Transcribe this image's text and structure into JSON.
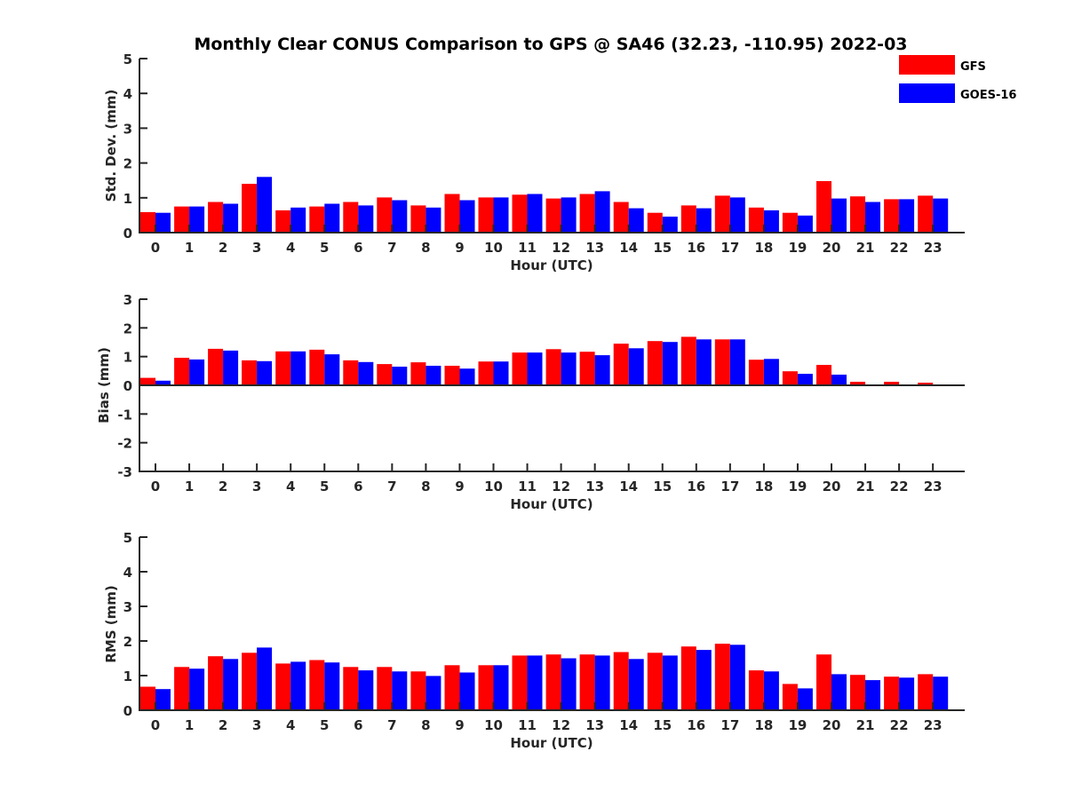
{
  "chart_data": {
    "type": "bar",
    "title": "Monthly Clear CONUS Comparison to GPS @ SA46 (32.23, -110.95) 2022-03",
    "legend": {
      "placement": "top-right",
      "entries": [
        {
          "name": "GFS",
          "color": "#ff0000"
        },
        {
          "name": "GOES-16",
          "color": "#0000ff"
        }
      ]
    },
    "categories": [
      "0",
      "1",
      "2",
      "3",
      "4",
      "5",
      "6",
      "7",
      "8",
      "9",
      "10",
      "11",
      "12",
      "13",
      "14",
      "15",
      "16",
      "17",
      "18",
      "19",
      "20",
      "21",
      "22",
      "23"
    ],
    "panels": [
      {
        "id": "std",
        "xlabel": "Hour (UTC)",
        "ylabel": "Std. Dev. (mm)",
        "ylim": [
          0,
          5
        ],
        "yticks": [
          "0",
          "1",
          "2",
          "3",
          "4",
          "5"
        ],
        "series": [
          {
            "name": "GFS",
            "values": [
              0.59,
              0.75,
              0.88,
              1.4,
              0.64,
              0.75,
              0.88,
              1.01,
              0.78,
              1.11,
              1.01,
              1.09,
              0.98,
              1.11,
              0.88,
              0.57,
              0.78,
              1.06,
              0.72,
              0.57,
              1.48,
              1.04,
              0.96,
              1.06
            ]
          },
          {
            "name": "GOES-16",
            "values": [
              0.57,
              0.75,
              0.83,
              1.6,
              0.72,
              0.83,
              0.78,
              0.93,
              0.72,
              0.93,
              1.01,
              1.11,
              1.01,
              1.19,
              0.7,
              0.46,
              0.7,
              1.01,
              0.64,
              0.49,
              0.98,
              0.88,
              0.96,
              0.98
            ]
          }
        ]
      },
      {
        "id": "bias",
        "xlabel": "Hour (UTC)",
        "ylabel": "Bias (mm)",
        "ylim": [
          -3,
          3
        ],
        "yticks": [
          "-3",
          "-2",
          "-1",
          "0",
          "1",
          "2",
          "3"
        ],
        "zero_line": true,
        "series": [
          {
            "name": "GFS",
            "values": [
              0.26,
              0.96,
              1.27,
              0.87,
              1.18,
              1.24,
              0.87,
              0.74,
              0.8,
              0.68,
              0.83,
              1.14,
              1.26,
              1.17,
              1.45,
              1.54,
              1.69,
              1.6,
              0.89,
              0.49,
              0.71,
              0.12,
              0.12,
              0.09
            ]
          },
          {
            "name": "GOES-16",
            "values": [
              0.16,
              0.9,
              1.21,
              0.84,
              1.18,
              1.08,
              0.81,
              0.65,
              0.68,
              0.58,
              0.83,
              1.14,
              1.14,
              1.05,
              1.29,
              1.51,
              1.6,
              1.6,
              0.92,
              0.4,
              0.37,
              -0.03,
              0.0,
              0.0
            ]
          }
        ]
      },
      {
        "id": "rms",
        "xlabel": "Hour (UTC)",
        "ylabel": "RMS (mm)",
        "ylim": [
          0,
          5
        ],
        "yticks": [
          "0",
          "1",
          "2",
          "3",
          "4",
          "5"
        ],
        "series": [
          {
            "name": "GFS",
            "values": [
              0.68,
              1.25,
              1.56,
              1.66,
              1.35,
              1.45,
              1.25,
              1.25,
              1.12,
              1.3,
              1.3,
              1.58,
              1.61,
              1.61,
              1.68,
              1.66,
              1.84,
              1.92,
              1.15,
              0.76,
              1.61,
              1.02,
              0.97,
              1.04
            ]
          },
          {
            "name": "GOES-16",
            "values": [
              0.61,
              1.2,
              1.48,
              1.81,
              1.4,
              1.38,
              1.15,
              1.12,
              0.99,
              1.09,
              1.3,
              1.58,
              1.5,
              1.58,
              1.48,
              1.58,
              1.74,
              1.89,
              1.12,
              0.63,
              1.04,
              0.87,
              0.94,
              0.97
            ]
          }
        ]
      }
    ]
  }
}
